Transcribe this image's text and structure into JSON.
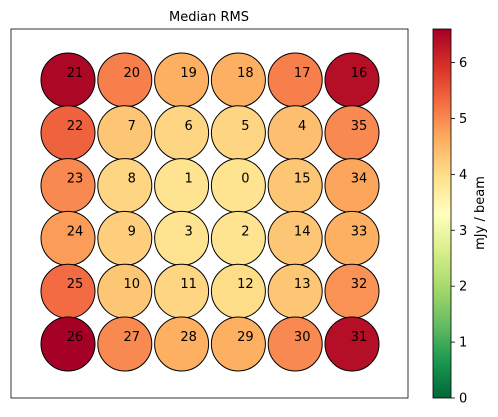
{
  "chart_data": {
    "type": "scatter",
    "title": "Median RMS",
    "colorbar": {
      "label": "mJy / beam",
      "range": [
        0,
        6.6
      ],
      "ticks": [
        0,
        1,
        2,
        3,
        4,
        5,
        6
      ],
      "colormap": "RdYlGn_r",
      "colormap_stops": [
        "#006837",
        "#1a9850",
        "#66bd63",
        "#a6d96a",
        "#d9ef8b",
        "#ffffbf",
        "#fee08b",
        "#fdae61",
        "#f46d43",
        "#d73027",
        "#a50026"
      ]
    },
    "beams": [
      {
        "label": "21",
        "col": 0,
        "row": 0,
        "value": 6.5
      },
      {
        "label": "20",
        "col": 1,
        "row": 0,
        "value": 5.1
      },
      {
        "label": "19",
        "col": 2,
        "row": 0,
        "value": 4.6
      },
      {
        "label": "18",
        "col": 3,
        "row": 0,
        "value": 4.6
      },
      {
        "label": "17",
        "col": 4,
        "row": 0,
        "value": 5.1
      },
      {
        "label": "16",
        "col": 5,
        "row": 0,
        "value": 6.4
      },
      {
        "label": "22",
        "col": 0,
        "row": 1,
        "value": 5.4
      },
      {
        "label": "7",
        "col": 1,
        "row": 1,
        "value": 4.3
      },
      {
        "label": "6",
        "col": 2,
        "row": 1,
        "value": 4.1
      },
      {
        "label": "5",
        "col": 3,
        "row": 1,
        "value": 4.1
      },
      {
        "label": "4",
        "col": 4,
        "row": 1,
        "value": 4.4
      },
      {
        "label": "35",
        "col": 5,
        "row": 1,
        "value": 5.0
      },
      {
        "label": "23",
        "col": 0,
        "row": 2,
        "value": 5.0
      },
      {
        "label": "8",
        "col": 1,
        "row": 2,
        "value": 4.1
      },
      {
        "label": "1",
        "col": 2,
        "row": 2,
        "value": 3.9
      },
      {
        "label": "0",
        "col": 3,
        "row": 2,
        "value": 3.9
      },
      {
        "label": "15",
        "col": 4,
        "row": 2,
        "value": 4.3
      },
      {
        "label": "34",
        "col": 5,
        "row": 2,
        "value": 4.7
      },
      {
        "label": "24",
        "col": 0,
        "row": 3,
        "value": 4.8
      },
      {
        "label": "9",
        "col": 1,
        "row": 3,
        "value": 4.2
      },
      {
        "label": "3",
        "col": 2,
        "row": 3,
        "value": 3.9
      },
      {
        "label": "2",
        "col": 3,
        "row": 3,
        "value": 3.9
      },
      {
        "label": "14",
        "col": 4,
        "row": 3,
        "value": 4.3
      },
      {
        "label": "33",
        "col": 5,
        "row": 3,
        "value": 4.6
      },
      {
        "label": "25",
        "col": 0,
        "row": 4,
        "value": 5.3
      },
      {
        "label": "10",
        "col": 1,
        "row": 4,
        "value": 4.3
      },
      {
        "label": "11",
        "col": 2,
        "row": 4,
        "value": 4.1
      },
      {
        "label": "12",
        "col": 3,
        "row": 4,
        "value": 4.0
      },
      {
        "label": "13",
        "col": 4,
        "row": 4,
        "value": 4.3
      },
      {
        "label": "32",
        "col": 5,
        "row": 4,
        "value": 4.9
      },
      {
        "label": "26",
        "col": 0,
        "row": 5,
        "value": 6.6
      },
      {
        "label": "27",
        "col": 1,
        "row": 5,
        "value": 5.0
      },
      {
        "label": "28",
        "col": 2,
        "row": 5,
        "value": 4.6
      },
      {
        "label": "29",
        "col": 3,
        "row": 5,
        "value": 4.6
      },
      {
        "label": "30",
        "col": 4,
        "row": 5,
        "value": 5.0
      },
      {
        "label": "31",
        "col": 5,
        "row": 5,
        "value": 6.4
      }
    ]
  }
}
